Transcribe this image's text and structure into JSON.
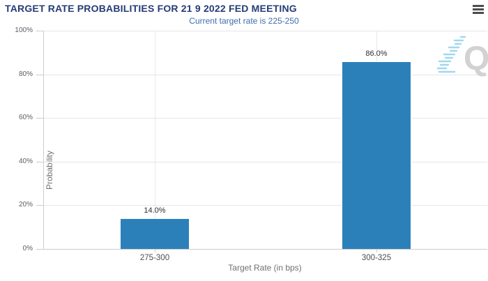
{
  "header": {
    "title": "TARGET RATE PROBABILITIES FOR 21 9 2022 FED MEETING",
    "subtitle": "Current target rate is 225-250",
    "menu_tooltip": "Chart context menu"
  },
  "colors": {
    "title": "#253c77",
    "subtitle": "#3e6cae",
    "bar": "#2c80ba",
    "axis_line": "#cccccc",
    "gridline": "#e6e6e6",
    "tick_label": "#5c5c64",
    "watermark_gray": "#d2d2d2",
    "watermark_blue": "#9fd8ef"
  },
  "watermark": {
    "letter": "Q"
  },
  "chart_data": {
    "type": "bar",
    "title": "TARGET RATE PROBABILITIES FOR 21 9 2022 FED MEETING",
    "subtitle": "Current target rate is 225-250",
    "categories": [
      "275-300",
      "300-325"
    ],
    "values": [
      14.0,
      86.0
    ],
    "value_labels": [
      "14.0%",
      "86.0%"
    ],
    "xlabel": "Target Rate (in bps)",
    "ylabel": "Probability",
    "ylim": [
      0,
      100
    ],
    "y_ticks": [
      "0%",
      "20%",
      "40%",
      "60%",
      "80%",
      "100%"
    ],
    "grid": true,
    "legend": false
  }
}
